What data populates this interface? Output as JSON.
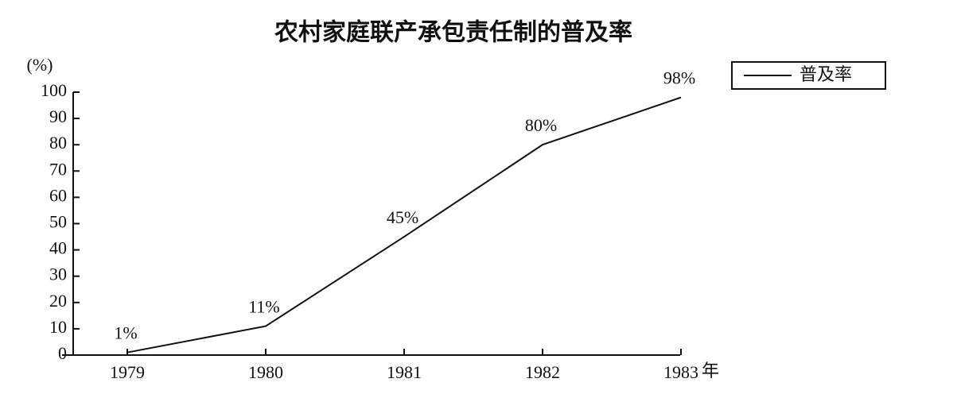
{
  "chart_data": {
    "type": "line",
    "title": "农村家庭联产承包责任制的普及率",
    "y_label": "(%)",
    "x_unit": "年",
    "categories": [
      "1979",
      "1980",
      "1981",
      "1982",
      "1983"
    ],
    "series": [
      {
        "name": "普及率",
        "color": "#111111",
        "values": [
          1,
          11,
          45,
          80,
          98
        ],
        "value_labels": [
          "1%",
          "11%",
          "45%",
          "80%",
          "98%"
        ]
      }
    ],
    "ylim": [
      0,
      100
    ],
    "yticks": [
      0,
      10,
      20,
      30,
      40,
      50,
      60,
      70,
      80,
      90,
      100
    ],
    "grid": false,
    "legend": "upper right"
  }
}
